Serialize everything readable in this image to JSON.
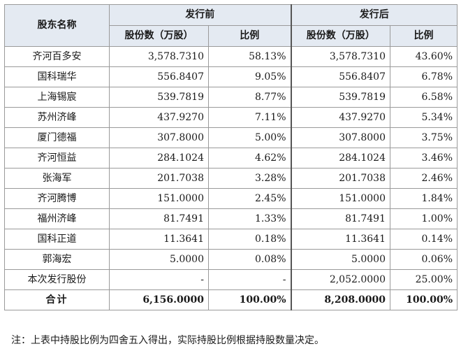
{
  "table": {
    "header": {
      "name": "股东名称",
      "before": "发行前",
      "after": "发行后",
      "shares": "股份数（万股）",
      "ratio": "比例"
    },
    "rows": [
      {
        "name": "齐河百多安",
        "before_shares": "3,578.7310",
        "before_ratio": "58.13%",
        "after_shares": "3,578.7310",
        "after_ratio": "43.60%"
      },
      {
        "name": "国科瑞华",
        "before_shares": "556.8407",
        "before_ratio": "9.05%",
        "after_shares": "556.8407",
        "after_ratio": "6.78%"
      },
      {
        "name": "上海锡宸",
        "before_shares": "539.7819",
        "before_ratio": "8.77%",
        "after_shares": "539.7819",
        "after_ratio": "6.58%"
      },
      {
        "name": "苏州济峰",
        "before_shares": "437.9270",
        "before_ratio": "7.11%",
        "after_shares": "437.9270",
        "after_ratio": "5.34%"
      },
      {
        "name": "厦门德福",
        "before_shares": "307.8000",
        "before_ratio": "5.00%",
        "after_shares": "307.8000",
        "after_ratio": "3.75%"
      },
      {
        "name": "齐河恒益",
        "before_shares": "284.1024",
        "before_ratio": "4.62%",
        "after_shares": "284.1024",
        "after_ratio": "3.46%"
      },
      {
        "name": "张海军",
        "before_shares": "201.7038",
        "before_ratio": "3.28%",
        "after_shares": "201.7038",
        "after_ratio": "2.46%"
      },
      {
        "name": "齐河腾博",
        "before_shares": "151.0000",
        "before_ratio": "2.45%",
        "after_shares": "151.0000",
        "after_ratio": "1.84%"
      },
      {
        "name": "福州济峰",
        "before_shares": "81.7491",
        "before_ratio": "1.33%",
        "after_shares": "81.7491",
        "after_ratio": "1.00%"
      },
      {
        "name": "国科正道",
        "before_shares": "11.3641",
        "before_ratio": "0.18%",
        "after_shares": "11.3641",
        "after_ratio": "0.14%"
      },
      {
        "name": "郭海宏",
        "before_shares": "5.0000",
        "before_ratio": "0.08%",
        "after_shares": "5.0000",
        "after_ratio": "0.06%"
      },
      {
        "name": "本次发行股份",
        "before_shares": "-",
        "before_ratio": "-",
        "after_shares": "2,052.0000",
        "after_ratio": "25.00%"
      }
    ],
    "total": {
      "name": "合计",
      "before_shares": "6,156.0000",
      "before_ratio": "100.00%",
      "after_shares": "8,208.0000",
      "after_ratio": "100.00%"
    }
  },
  "note": "注：上表中持股比例为四舍五入得出，实际持股比例根据持股数量决定。"
}
